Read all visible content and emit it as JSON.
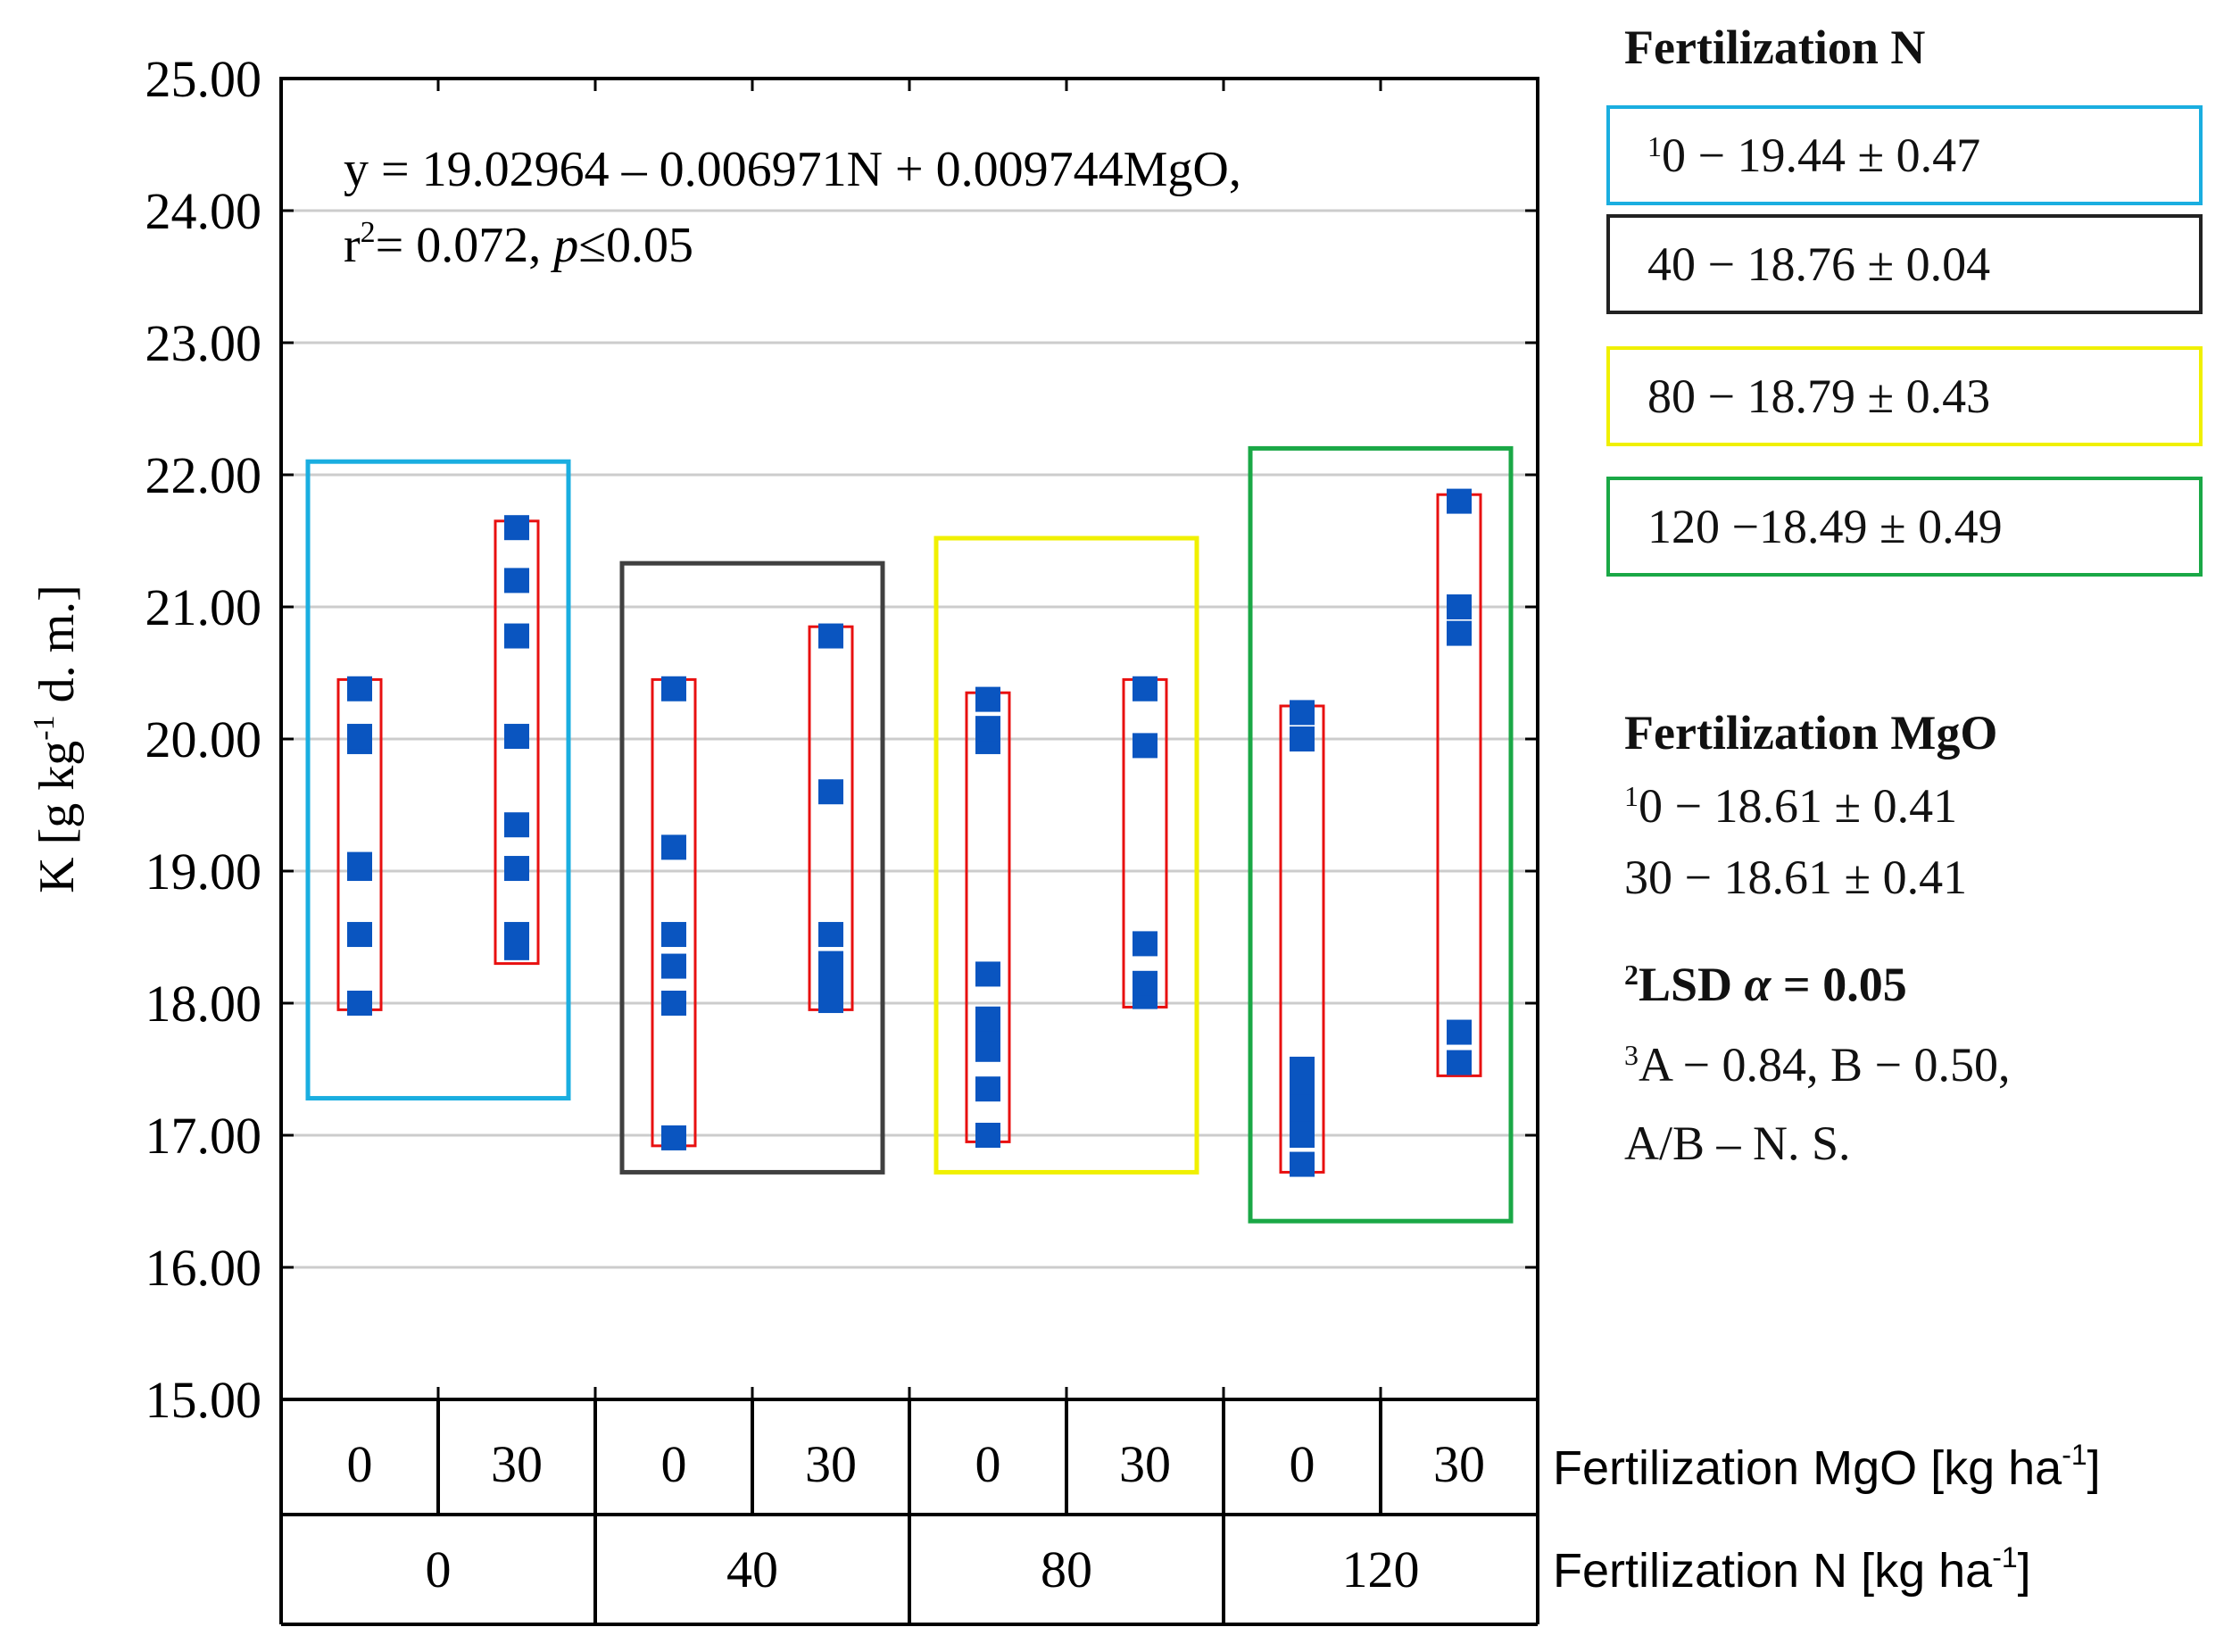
{
  "chart_data": {
    "type": "scatter",
    "ylabel": "K [g kg",
    "ylabel_sup": "-1",
    "ylabel_tail": " d. m.]",
    "ylim": [
      15,
      25
    ],
    "yticks": [
      "15.00",
      "16.00",
      "17.00",
      "18.00",
      "19.00",
      "20.00",
      "21.00",
      "22.00",
      "23.00",
      "24.00",
      "25.00"
    ],
    "equation": "y = 19.02964 – 0.006971N + 0.009744MgO,",
    "r2_prefix": "r",
    "r2_sup": "2",
    "r2_value": "= 0.072, ",
    "p_italic": "p",
    "p_value": "≤0.05",
    "mgo_axis_label": "Fertilization MgO [kg ha",
    "n_axis_label": "Fertilization N [kg ha",
    "axis_label_sup": "-1",
    "axis_label_close": "]",
    "mgo_categories": [
      "0",
      "30",
      "0",
      "30",
      "0",
      "30",
      "0",
      "30"
    ],
    "n_categories": [
      "0",
      "40",
      "80",
      "120"
    ],
    "series": [
      {
        "n": "0",
        "mgo": "0",
        "values": [
          18.0,
          18.52,
          19.02,
          19.05,
          19.98,
          20.02,
          20.38
        ],
        "range": [
          17.95,
          20.45
        ]
      },
      {
        "n": "0",
        "mgo": "30",
        "values": [
          18.42,
          18.52,
          19.02,
          19.35,
          20.02,
          20.78,
          21.2,
          21.6
        ],
        "range": [
          18.3,
          21.65
        ]
      },
      {
        "n": "40",
        "mgo": "0",
        "values": [
          16.98,
          18.0,
          18.28,
          18.52,
          19.18,
          20.38
        ],
        "range": [
          16.92,
          20.45
        ]
      },
      {
        "n": "40",
        "mgo": "30",
        "values": [
          18.02,
          18.12,
          18.3,
          18.52,
          19.6,
          20.78
        ],
        "range": [
          17.95,
          20.85
        ]
      },
      {
        "n": "80",
        "mgo": "0",
        "values": [
          17.0,
          17.35,
          17.65,
          17.82,
          17.88,
          18.22,
          19.98,
          20.08,
          20.3
        ],
        "range": [
          16.95,
          20.35
        ]
      },
      {
        "n": "80",
        "mgo": "30",
        "values": [
          18.05,
          18.15,
          18.45,
          19.95,
          20.38
        ],
        "range": [
          17.97,
          20.45
        ]
      },
      {
        "n": "120",
        "mgo": "0",
        "values": [
          16.78,
          17.0,
          17.1,
          17.2,
          17.3,
          17.4,
          17.5,
          20.0,
          20.2
        ],
        "range": [
          16.72,
          20.25
        ]
      },
      {
        "n": "120",
        "mgo": "30",
        "values": [
          17.55,
          17.78,
          20.8,
          21.0,
          21.8
        ],
        "range": [
          17.45,
          21.85
        ]
      }
    ],
    "groups": [
      {
        "n": "0",
        "color": "#1aaee0",
        "ymin": 17.28,
        "ymax": 22.1
      },
      {
        "n": "40",
        "color": "#404040",
        "ymin": 16.72,
        "ymax": 21.33
      },
      {
        "n": "80",
        "color": "#f0f000",
        "ymin": 16.72,
        "ymax": 21.52
      },
      {
        "n": "120",
        "color": "#1aa846",
        "ymin": 16.35,
        "ymax": 22.2
      }
    ],
    "colors": {
      "point": "#0a55c0",
      "range_box": "#e81010",
      "grid": "#cccccc"
    }
  },
  "legend_n": {
    "title": "Fertilization N",
    "entries": [
      {
        "sup": "1",
        "text": "0 − 19.44 ± 0.47",
        "color": "#1aaee0"
      },
      {
        "sup": "",
        "text": "40 − 18.76 ± 0.04",
        "color": "#222222"
      },
      {
        "sup": "",
        "text": "80 − 18.79 ± 0.43",
        "color": "#f0f000"
      },
      {
        "sup": "",
        "text": "120 −18.49 ± 0.49",
        "color": "#1aa846"
      }
    ]
  },
  "legend_mgo": {
    "title": "Fertilization MgO",
    "line1_sup": "1",
    "line1": "0 − 18.61 ± 0.41",
    "line2": "30 − 18.61 ± 0.41",
    "lsd_sup": "2",
    "lsd_title": "LSD ",
    "lsd_alpha": "α",
    "lsd_value": " = 0.05",
    "line3_sup": "3",
    "line3": "A − 0.84, B − 0.50,",
    "line4": "A/B – N. S."
  }
}
